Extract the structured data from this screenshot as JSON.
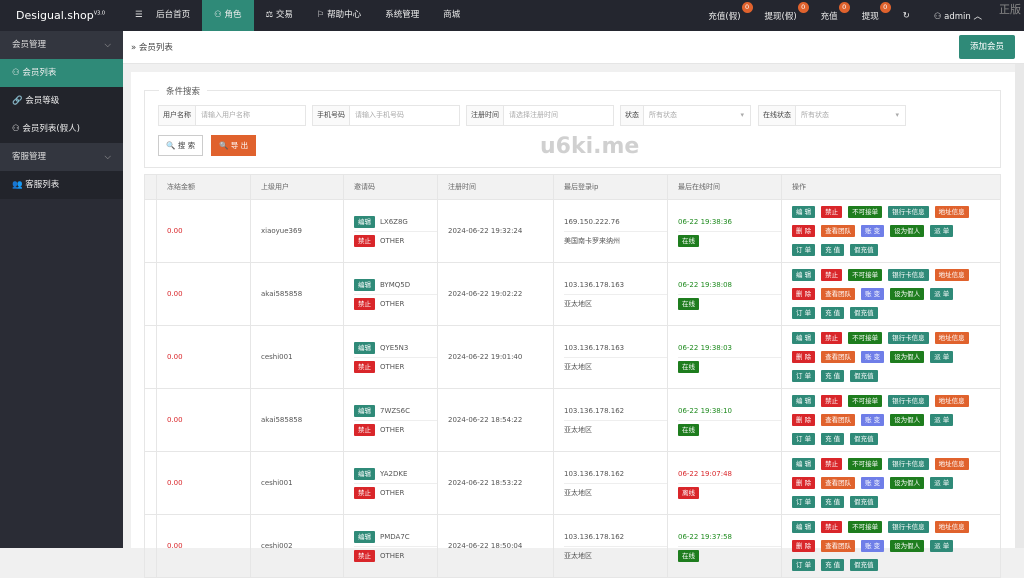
{
  "app": {
    "title": "Desigual.shop",
    "version": "V3.0"
  },
  "nav": [
    "后台首页",
    "角色",
    "交易",
    "帮助中心",
    "系统管理",
    "商城"
  ],
  "nav_icons": [
    "menu-icon",
    "user-icon",
    "scale-icon",
    "flag-icon",
    "",
    ""
  ],
  "topright": [
    {
      "label": "充值(假)",
      "count": "0"
    },
    {
      "label": "提现(假)",
      "count": "0"
    },
    {
      "label": "充值",
      "count": "0"
    },
    {
      "label": "提现",
      "count": "0"
    }
  ],
  "user": "admin",
  "corner_watermark": "正版",
  "watermark": "u6ki.me",
  "sidebar": [
    {
      "type": "group",
      "label": "会员管理"
    },
    {
      "type": "item",
      "label": "会员列表",
      "icon": "user-icon",
      "active": true
    },
    {
      "type": "item",
      "label": "会员等级",
      "icon": "link-icon"
    },
    {
      "type": "item",
      "label": "会员列表(假人)",
      "icon": "user-icon"
    },
    {
      "type": "group",
      "label": "客服管理"
    },
    {
      "type": "item",
      "label": "客服列表",
      "icon": "users-icon"
    }
  ],
  "breadcrumb": "会员列表",
  "add_button": "添加会员",
  "search": {
    "legend": "条件搜索",
    "fields": [
      {
        "label": "用户名称",
        "placeholder": "请输入用户名称"
      },
      {
        "label": "手机号码",
        "placeholder": "请输入手机号码"
      },
      {
        "label": "注册时间",
        "placeholder": "请选择注册时间"
      },
      {
        "label": "状态",
        "placeholder": "所有状态",
        "select": true
      },
      {
        "label": "在线状态",
        "placeholder": "所有状态",
        "select": true
      }
    ],
    "search_btn": "搜 索",
    "export_btn": "导 出"
  },
  "table": {
    "headers": [
      "",
      "冻结金额",
      "上级用户",
      "邀请码",
      "注册时间",
      "最后登录ip",
      "最后在线时间",
      "操作"
    ],
    "rows": [
      {
        "frozen": "0.00",
        "parent": "xiaoyue369",
        "code": "LX6Z8G",
        "src": "OTHER",
        "reg": "2024-06-22 19:32:24",
        "ip": "169.150.222.76",
        "region": "美国南卡罗来纳州",
        "last": "06-22 19:38:36",
        "online": true
      },
      {
        "frozen": "0.00",
        "parent": "akai585858",
        "code": "BYMQ5D",
        "src": "OTHER",
        "reg": "2024-06-22 19:02:22",
        "ip": "103.136.178.163",
        "region": "亚太地区",
        "last": "06-22 19:38:08",
        "online": true
      },
      {
        "frozen": "0.00",
        "parent": "ceshi001",
        "code": "QYE5N3",
        "src": "OTHER",
        "reg": "2024-06-22 19:01:40",
        "ip": "103.136.178.163",
        "region": "亚太地区",
        "last": "06-22 19:38:03",
        "online": true
      },
      {
        "frozen": "0.00",
        "parent": "akai585858",
        "code": "7WZS6C",
        "src": "OTHER",
        "reg": "2024-06-22 18:54:22",
        "ip": "103.136.178.162",
        "region": "亚太地区",
        "last": "06-22 19:38:10",
        "online": true
      },
      {
        "frozen": "0.00",
        "parent": "ceshi001",
        "code": "YA2DKE",
        "src": "OTHER",
        "reg": "2024-06-22 18:53:22",
        "ip": "103.136.178.162",
        "region": "亚太地区",
        "last": "06-22 19:07:48",
        "online": false
      },
      {
        "frozen": "0.00",
        "parent": "ceshi002",
        "code": "PMDA7C",
        "src": "OTHER",
        "reg": "2024-06-22 18:50:04",
        "ip": "103.136.178.162",
        "region": "亚太地区",
        "last": "06-22 19:37:58",
        "online": true
      }
    ],
    "edit_label": "编辑",
    "ban_label": "禁止",
    "online_label": "在线",
    "offline_label": "离线",
    "ops": [
      [
        {
          "t": "编 辑",
          "c": "teal"
        },
        {
          "t": "禁止",
          "c": "bred"
        },
        {
          "t": "不可接单",
          "c": "bgrn"
        },
        {
          "t": "银行卡信息",
          "c": "teal"
        },
        {
          "t": "地址信息",
          "c": "org"
        }
      ],
      [
        {
          "t": "删 除",
          "c": "bred"
        },
        {
          "t": "查看团队",
          "c": "org"
        },
        {
          "t": "账 变",
          "c": "blu"
        },
        {
          "t": "设为假人",
          "c": "bgrn"
        },
        {
          "t": "派 单",
          "c": "teal"
        }
      ],
      [
        {
          "t": "订 单",
          "c": "teal"
        },
        {
          "t": "充 值",
          "c": "teal"
        },
        {
          "t": "假充值",
          "c": "teal"
        }
      ]
    ]
  },
  "colors": {
    "accent": "#2f8a78",
    "danger": "#d9262a",
    "success": "#1e7d1e",
    "warning": "#e0622d",
    "info": "#6f7ee8",
    "topbar": "#24262f"
  }
}
